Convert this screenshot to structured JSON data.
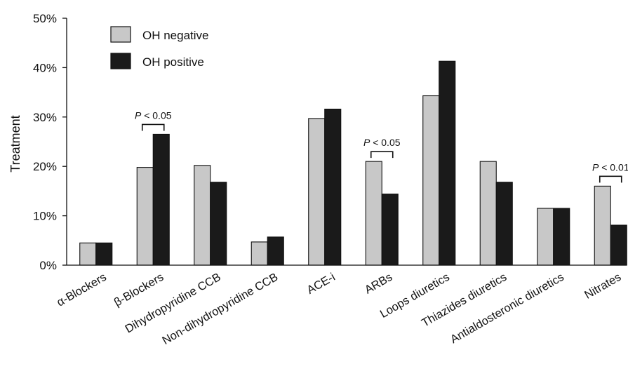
{
  "chart_data": {
    "type": "bar",
    "ylabel": "Treatment",
    "ylim": [
      0,
      50
    ],
    "yticks": [
      "0%",
      "10%",
      "20%",
      "30%",
      "40%",
      "50%"
    ],
    "categories": [
      "α-Blockers",
      "β-Blockers",
      "Dihydropyridine CCB",
      "Non-dihydropyridine CCB",
      "ACE-i",
      "ARBs",
      "Loops diuretics",
      "Thiazides diuretics",
      "Antialdosteronic diuretics",
      "Nitrates"
    ],
    "series": [
      {
        "name": "OH negative",
        "color": "#c8c8c8",
        "values": [
          4.5,
          19.8,
          20.2,
          4.7,
          29.7,
          21.0,
          34.3,
          21.0,
          11.5,
          16.0
        ]
      },
      {
        "name": "OH positive",
        "color": "#1a1a1a",
        "values": [
          4.5,
          26.5,
          16.8,
          5.7,
          31.6,
          14.4,
          41.3,
          16.8,
          11.5,
          8.1
        ]
      }
    ],
    "legend_position": "top-left",
    "annotations": [
      {
        "category_index": 1,
        "text": "P < 0.05"
      },
      {
        "category_index": 5,
        "text": "P < 0.05"
      },
      {
        "category_index": 9,
        "text": "P < 0.01"
      }
    ]
  }
}
